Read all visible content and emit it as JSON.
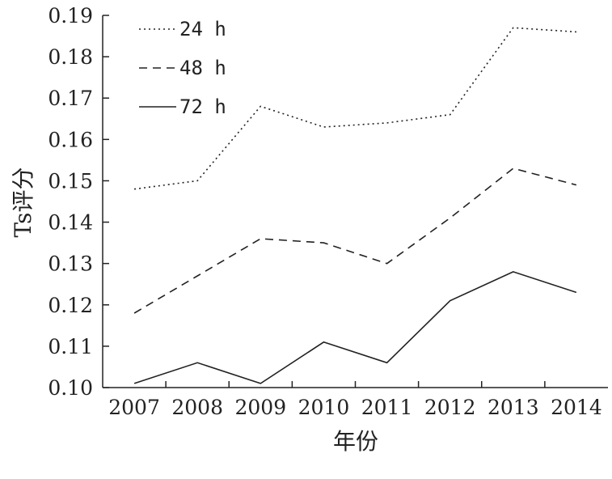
{
  "chart_data": {
    "type": "line",
    "x": [
      "2007",
      "2008",
      "2009",
      "2010",
      "2011",
      "2012",
      "2013",
      "2014"
    ],
    "ylim": [
      0.1,
      0.19
    ],
    "yticks": [
      "0.10",
      "0.11",
      "0.12",
      "0.13",
      "0.14",
      "0.15",
      "0.16",
      "0.17",
      "0.18",
      "0.19"
    ],
    "xlabel": "年份",
    "ylabel": "Ts评分",
    "grid": false,
    "legend_position": "top-left",
    "series": [
      {
        "name": "24 h",
        "style": "dotted",
        "color": "#222222",
        "values": [
          0.148,
          0.15,
          0.168,
          0.163,
          0.164,
          0.166,
          0.187,
          0.186
        ]
      },
      {
        "name": "48 h",
        "style": "dashed",
        "color": "#222222",
        "values": [
          0.118,
          0.127,
          0.136,
          0.135,
          0.13,
          0.141,
          0.153,
          0.149
        ]
      },
      {
        "name": "72 h",
        "style": "solid",
        "color": "#222222",
        "values": [
          0.101,
          0.106,
          0.101,
          0.111,
          0.106,
          0.121,
          0.128,
          0.123
        ]
      }
    ]
  }
}
